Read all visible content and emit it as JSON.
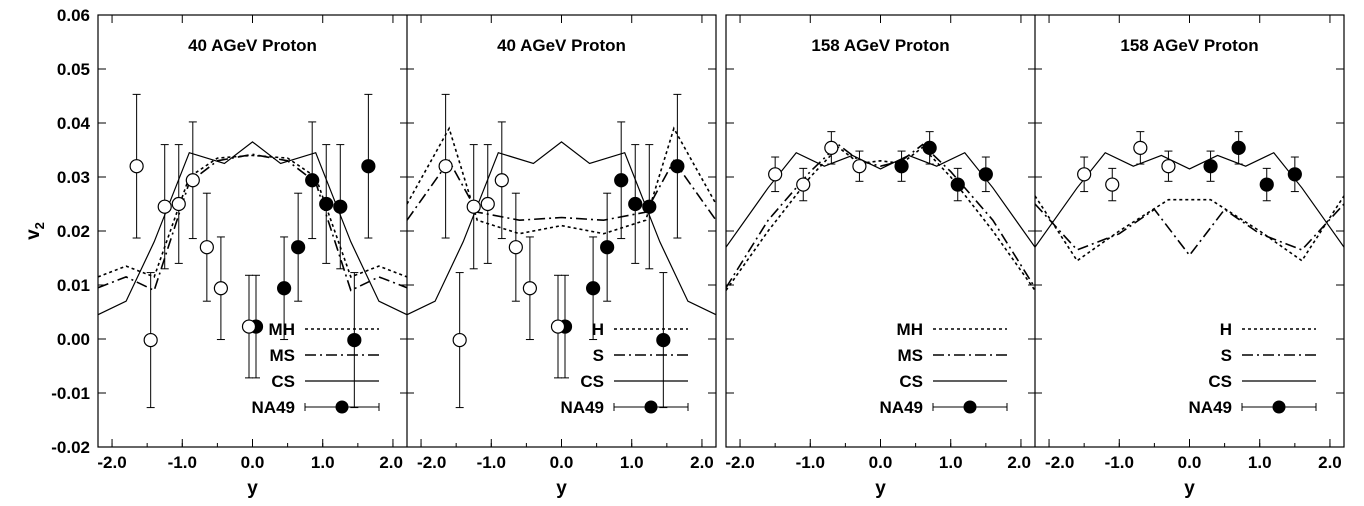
{
  "chart_data": {
    "type": "line",
    "y_axis_label": "v",
    "y_axis_label_sub": "2",
    "y_ticks": [
      "0.06",
      "0.05",
      "0.04",
      "0.03",
      "0.02",
      "0.01",
      "0.00",
      "-0.01",
      "-0.02"
    ],
    "ylim": [
      -0.02,
      0.06
    ],
    "xlim": [
      -2.2,
      2.2
    ],
    "grid": false,
    "panels": [
      {
        "title": "40 AGeV Proton",
        "xlabel": "y",
        "x_ticks": [
          "-2.0",
          "-1.0",
          "0.0",
          "1.0",
          "2.0"
        ],
        "legend": [
          "MH",
          "MS",
          "CS",
          "NA49"
        ],
        "series": [
          {
            "name": "MH",
            "style": "dotted",
            "x": [
              -2.2,
              -1.8,
              -1.4,
              -0.9,
              -0.5,
              0.0,
              0.5,
              0.9,
              1.4,
              1.8,
              2.2
            ],
            "y": [
              0.0115,
              0.0135,
              0.0115,
              0.03,
              0.0335,
              0.034,
              0.0335,
              0.03,
              0.0115,
              0.0135,
              0.0115
            ]
          },
          {
            "name": "MS",
            "style": "dashdot",
            "x": [
              -2.2,
              -1.8,
              -1.4,
              -0.9,
              -0.5,
              0.0,
              0.5,
              0.9,
              1.4,
              1.8,
              2.2
            ],
            "y": [
              0.0095,
              0.0115,
              0.009,
              0.029,
              0.033,
              0.0342,
              0.033,
              0.029,
              0.009,
              0.0115,
              0.0095
            ]
          },
          {
            "name": "CS",
            "style": "solid",
            "x": [
              -2.2,
              -1.8,
              -1.4,
              -0.9,
              -0.4,
              0.0,
              0.4,
              0.9,
              1.4,
              1.8,
              2.2
            ],
            "y": [
              0.0045,
              0.007,
              0.018,
              0.0345,
              0.0325,
              0.0365,
              0.0325,
              0.0345,
              0.018,
              0.007,
              0.0045
            ]
          },
          {
            "name": "NA49",
            "x": [
              0.05,
              0.45,
              0.65,
              0.85,
              1.05,
              1.25,
              1.45,
              1.65
            ],
            "y": [
              0.0023,
              0.0094,
              0.017,
              0.0294,
              0.025,
              0.0245,
              -0.0002,
              0.032
            ],
            "err": [
              0.0095,
              0.0095,
              0.01,
              0.0108,
              0.011,
              0.0115,
              0.0125,
              0.0133
            ]
          },
          {
            "name": "NA49 (reflected)",
            "x": [
              -0.05,
              -0.45,
              -0.65,
              -0.85,
              -1.05,
              -1.25,
              -1.45,
              -1.65
            ],
            "y": [
              0.0023,
              0.0094,
              0.017,
              0.0294,
              0.025,
              0.0245,
              -0.0002,
              0.032
            ],
            "err": [
              0.0095,
              0.0095,
              0.01,
              0.0108,
              0.011,
              0.0115,
              0.0125,
              0.0133
            ]
          }
        ]
      },
      {
        "title": "40 AGeV Proton",
        "xlabel": "y",
        "x_ticks": [
          "-2.0",
          "-1.0",
          "0.0",
          "1.0",
          "2.0"
        ],
        "legend": [
          "H",
          "S",
          "CS",
          "NA49"
        ],
        "series": [
          {
            "name": "H",
            "style": "dotted",
            "x": [
              -2.2,
              -1.6,
              -1.2,
              -0.6,
              0.0,
              0.6,
              1.2,
              1.6,
              2.2
            ],
            "y": [
              0.025,
              0.039,
              0.022,
              0.0195,
              0.021,
              0.0195,
              0.022,
              0.039,
              0.025
            ]
          },
          {
            "name": "S",
            "style": "dashdot",
            "x": [
              -2.2,
              -1.6,
              -1.2,
              -0.6,
              0.0,
              0.6,
              1.2,
              1.6,
              2.2
            ],
            "y": [
              0.022,
              0.033,
              0.0235,
              0.022,
              0.0225,
              0.022,
              0.0235,
              0.033,
              0.022
            ]
          },
          {
            "name": "CS",
            "style": "solid",
            "x": [
              -2.2,
              -1.8,
              -1.4,
              -0.9,
              -0.4,
              0.0,
              0.4,
              0.9,
              1.4,
              1.8,
              2.2
            ],
            "y": [
              0.0045,
              0.007,
              0.018,
              0.0345,
              0.0325,
              0.0365,
              0.0325,
              0.0345,
              0.018,
              0.007,
              0.0045
            ]
          },
          {
            "name": "NA49",
            "x": [
              0.05,
              0.45,
              0.65,
              0.85,
              1.05,
              1.25,
              1.45,
              1.65
            ],
            "y": [
              0.0023,
              0.0094,
              0.017,
              0.0294,
              0.025,
              0.0245,
              -0.0002,
              0.032
            ],
            "err": [
              0.0095,
              0.0095,
              0.01,
              0.0108,
              0.011,
              0.0115,
              0.0125,
              0.0133
            ]
          },
          {
            "name": "NA49 (reflected)",
            "x": [
              -0.05,
              -0.45,
              -0.65,
              -0.85,
              -1.05,
              -1.25,
              -1.45,
              -1.65
            ],
            "y": [
              0.0023,
              0.0094,
              0.017,
              0.0294,
              0.025,
              0.0245,
              -0.0002,
              0.032
            ],
            "err": [
              0.0095,
              0.0095,
              0.01,
              0.0108,
              0.011,
              0.0115,
              0.0125,
              0.0133
            ]
          }
        ]
      },
      {
        "title": "158 AGeV Proton",
        "xlabel": "y",
        "x_ticks": [
          "-2.0",
          "-1.0",
          "0.0",
          "1.0",
          "2.0"
        ],
        "legend": [
          "MH",
          "MS",
          "CS",
          "NA49"
        ],
        "series": [
          {
            "name": "MH",
            "style": "dotted",
            "x": [
              -2.2,
              -1.6,
              -1.0,
              -0.6,
              -0.3,
              0.0,
              0.3,
              0.6,
              1.0,
              1.6,
              2.2
            ],
            "y": [
              0.009,
              0.02,
              0.03,
              0.0355,
              0.0325,
              0.033,
              0.0325,
              0.0355,
              0.03,
              0.02,
              0.009
            ]
          },
          {
            "name": "MS",
            "style": "dashdot",
            "x": [
              -2.2,
              -1.6,
              -1.0,
              -0.6,
              -0.3,
              0.0,
              0.3,
              0.6,
              1.0,
              1.6,
              2.2
            ],
            "y": [
              0.0095,
              0.022,
              0.031,
              0.036,
              0.033,
              0.032,
              0.033,
              0.036,
              0.031,
              0.022,
              0.0095
            ]
          },
          {
            "name": "CS",
            "style": "solid",
            "x": [
              -2.2,
              -1.6,
              -1.2,
              -0.8,
              -0.4,
              0.0,
              0.4,
              0.8,
              1.2,
              1.6,
              2.2
            ],
            "y": [
              0.017,
              0.028,
              0.0345,
              0.032,
              0.034,
              0.0315,
              0.034,
              0.032,
              0.0345,
              0.028,
              0.017
            ]
          },
          {
            "name": "NA49",
            "x": [
              0.3,
              0.7,
              1.1,
              1.5
            ],
            "y": [
              0.032,
              0.0354,
              0.0286,
              0.0305
            ],
            "err": [
              0.0028,
              0.003,
              0.003,
              0.0032
            ]
          },
          {
            "name": "NA49 (reflected)",
            "x": [
              -0.3,
              -0.7,
              -1.1,
              -1.5
            ],
            "y": [
              0.032,
              0.0354,
              0.0286,
              0.0305
            ],
            "err": [
              0.0028,
              0.003,
              0.003,
              0.0032
            ]
          }
        ]
      },
      {
        "title": "158 AGeV Proton",
        "xlabel": "y",
        "x_ticks": [
          "-2.0",
          "-1.0",
          "0.0",
          "1.0",
          "2.0"
        ],
        "legend": [
          "H",
          "S",
          "CS",
          "NA49"
        ],
        "series": [
          {
            "name": "H",
            "style": "dotted",
            "x": [
              -2.2,
              -1.6,
              -1.0,
              -0.3,
              0.0,
              0.3,
              1.0,
              1.6,
              2.2
            ],
            "y": [
              0.0265,
              0.0145,
              0.02,
              0.0258,
              0.0258,
              0.0258,
              0.02,
              0.0145,
              0.0265
            ]
          },
          {
            "name": "S",
            "style": "dashdot",
            "x": [
              -2.2,
              -1.6,
              -1.0,
              -0.5,
              0.0,
              0.5,
              1.0,
              1.6,
              2.2
            ],
            "y": [
              0.025,
              0.0165,
              0.0195,
              0.024,
              0.0155,
              0.024,
              0.0195,
              0.0165,
              0.025
            ]
          },
          {
            "name": "CS",
            "style": "solid",
            "x": [
              -2.2,
              -1.6,
              -1.2,
              -0.8,
              -0.4,
              0.0,
              0.4,
              0.8,
              1.2,
              1.6,
              2.2
            ],
            "y": [
              0.017,
              0.028,
              0.0345,
              0.032,
              0.034,
              0.0315,
              0.034,
              0.032,
              0.0345,
              0.028,
              0.017
            ]
          },
          {
            "name": "NA49",
            "x": [
              0.3,
              0.7,
              1.1,
              1.5
            ],
            "y": [
              0.032,
              0.0354,
              0.0286,
              0.0305
            ],
            "err": [
              0.0028,
              0.003,
              0.003,
              0.0032
            ]
          },
          {
            "name": "NA49 (reflected)",
            "x": [
              -0.3,
              -0.7,
              -1.1,
              -1.5
            ],
            "y": [
              0.032,
              0.0354,
              0.0286,
              0.0305
            ],
            "err": [
              0.0028,
              0.003,
              0.003,
              0.0032
            ]
          }
        ]
      }
    ]
  }
}
